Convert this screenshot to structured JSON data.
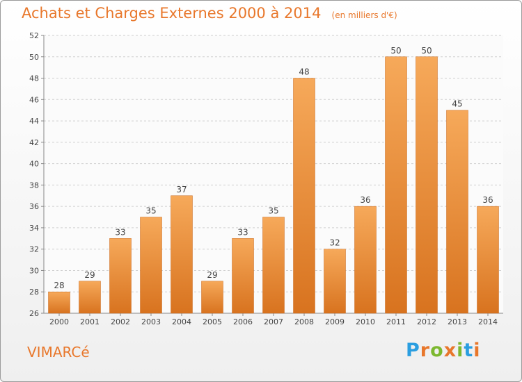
{
  "header": {
    "title": "Achats et Charges Externes 2000 à 2014",
    "subtitle": "(en milliers d'€)"
  },
  "footer": {
    "city": "VIMARCé",
    "logo_text": "Proxiti",
    "logo_colors": [
      "#2a9ee0",
      "#e8772b",
      "#7cb82f",
      "#e8772b",
      "#7cb82f",
      "#2a9ee0",
      "#e8772b"
    ]
  },
  "chart_data": {
    "type": "bar",
    "categories": [
      "2000",
      "2001",
      "2002",
      "2003",
      "2004",
      "2005",
      "2006",
      "2007",
      "2008",
      "2009",
      "2010",
      "2011",
      "2012",
      "2013",
      "2014"
    ],
    "values": [
      28,
      29,
      33,
      35,
      37,
      29,
      33,
      35,
      48,
      32,
      36,
      50,
      50,
      45,
      36
    ],
    "yticks": [
      26,
      28,
      30,
      32,
      34,
      36,
      38,
      40,
      42,
      44,
      46,
      48,
      50,
      52
    ],
    "ylim": [
      26,
      52
    ],
    "grid": true,
    "bar_color_light": "#f6a95a",
    "bar_color_dark": "#d8731f",
    "text_color": "#444444"
  }
}
